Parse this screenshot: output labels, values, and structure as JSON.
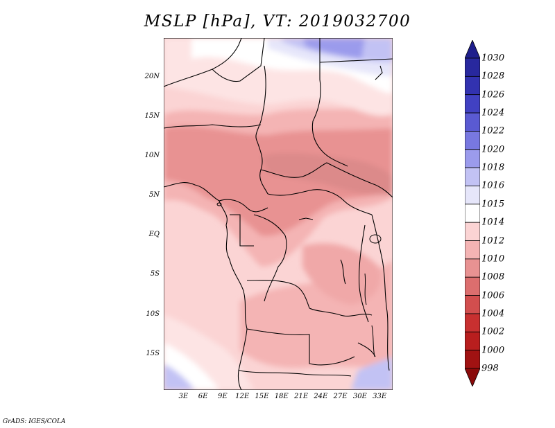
{
  "title": "MSLP [hPa], VT: 2019032700",
  "footer": "GrADS: IGES/COLA",
  "map": {
    "lat_labels": [
      "20N",
      "15N",
      "10N",
      "5N",
      "EQ",
      "5S",
      "10S",
      "15S"
    ],
    "lat_values": [
      20,
      15,
      10,
      5,
      0,
      -5,
      -10,
      -15
    ],
    "lon_labels": [
      "3E",
      "6E",
      "9E",
      "12E",
      "15E",
      "18E",
      "21E",
      "24E",
      "27E",
      "30E",
      "33E"
    ],
    "lon_values": [
      3,
      6,
      9,
      12,
      15,
      18,
      21,
      24,
      27,
      30,
      33
    ],
    "lat_range": [
      -19.5,
      25
    ],
    "lon_range": [
      0,
      35
    ],
    "field": "Mean sea level pressure"
  },
  "colorbar": {
    "levels": [
      "1030",
      "1028",
      "1026",
      "1024",
      "1022",
      "1020",
      "1018",
      "1016",
      "1015",
      "1014",
      "1012",
      "1010",
      "1008",
      "1006",
      "1004",
      "1002",
      "1000",
      "998"
    ],
    "colors": [
      "#1e1e8c",
      "#28289e",
      "#3232b0",
      "#4141c2",
      "#5a5ad2",
      "#7878e0",
      "#9b9bec",
      "#c2c2f4",
      "#e6e6fa",
      "#ffffff",
      "#fbd4d4",
      "#f4b4b4",
      "#e89292",
      "#dc6e6e",
      "#d24e4e",
      "#c83030",
      "#b81e1e",
      "#a01212",
      "#8a0a0a"
    ]
  },
  "colors": {
    "land_border": "#000000",
    "background": "#ffffff"
  }
}
